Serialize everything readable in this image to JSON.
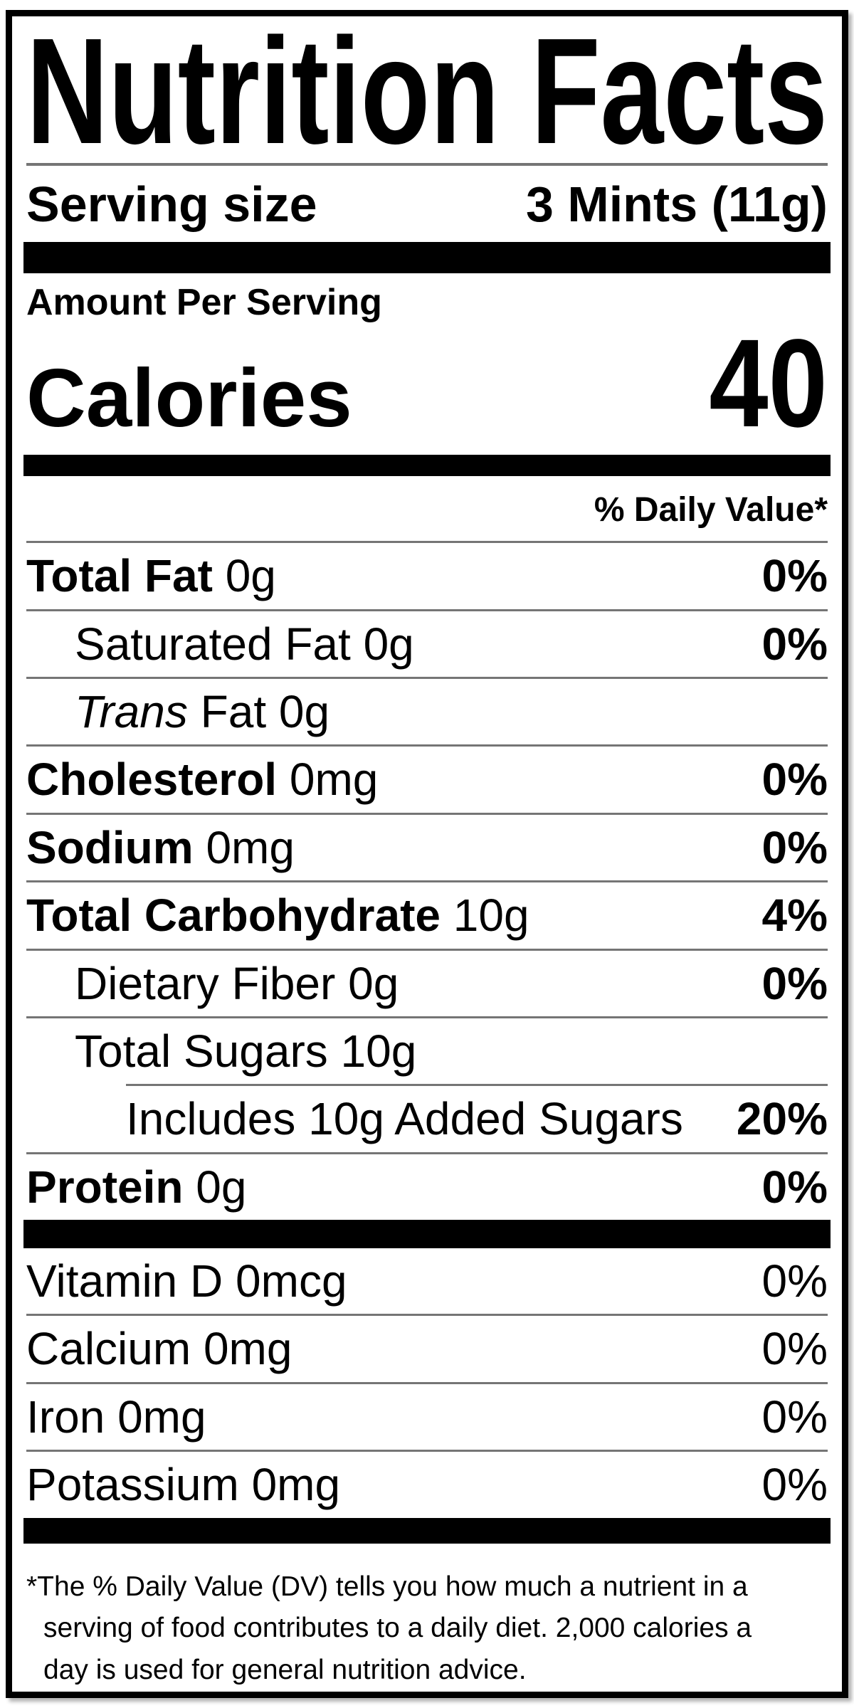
{
  "title": "Nutrition Facts",
  "serving_row": {
    "label": "Serving size",
    "value": "3 Mints (11g)"
  },
  "amount_per_serving_label": "Amount Per Serving",
  "calories_row": {
    "label": "Calories",
    "value": "40"
  },
  "daily_value_header": "% Daily Value*",
  "nutrients": [
    {
      "name": "Total Fat",
      "amount": "0g",
      "dv": "0%",
      "indent": 0,
      "bold_name": true,
      "bold_dv": true,
      "sep": "full"
    },
    {
      "name": "Saturated Fat",
      "amount": "0g",
      "dv": "0%",
      "indent": 1,
      "bold_name": false,
      "bold_dv": true,
      "sep": "full"
    },
    {
      "name": "Trans Fat",
      "amount": "0g",
      "dv": "",
      "indent": 1,
      "bold_name": false,
      "bold_dv": false,
      "italic_first": true,
      "sep": "full"
    },
    {
      "name": "Cholesterol",
      "amount": "0mg",
      "dv": "0%",
      "indent": 0,
      "bold_name": true,
      "bold_dv": true,
      "sep": "full"
    },
    {
      "name": "Sodium",
      "amount": "0mg",
      "dv": "0%",
      "indent": 0,
      "bold_name": true,
      "bold_dv": true,
      "sep": "full"
    },
    {
      "name": "Total Carbohydrate",
      "amount": "10g",
      "dv": "4%",
      "indent": 0,
      "bold_name": true,
      "bold_dv": true,
      "sep": "full"
    },
    {
      "name": "Dietary Fiber",
      "amount": "0g",
      "dv": "0%",
      "indent": 1,
      "bold_name": false,
      "bold_dv": true,
      "sep": "full"
    },
    {
      "name": "Total Sugars",
      "amount": "10g",
      "dv": "",
      "indent": 1,
      "bold_name": false,
      "bold_dv": false,
      "sep": "full"
    },
    {
      "name": "Includes 10g Added Sugars",
      "amount": "",
      "dv": "20%",
      "indent": 2,
      "bold_name": false,
      "bold_dv": true,
      "sep": "indent"
    },
    {
      "name": "Protein",
      "amount": "0g",
      "dv": "0%",
      "indent": 0,
      "bold_name": true,
      "bold_dv": true,
      "sep": "full"
    }
  ],
  "vitamins": [
    {
      "name": "Vitamin D",
      "amount": "0mcg",
      "dv": "0%",
      "sep": "none"
    },
    {
      "name": "Calcium",
      "amount": "0mg",
      "dv": "0%",
      "sep": "full"
    },
    {
      "name": "Iron",
      "amount": "0mg",
      "dv": "0%",
      "sep": "full"
    },
    {
      "name": "Potassium",
      "amount": "0mg",
      "dv": "0%",
      "sep": "full"
    }
  ],
  "footnote_lines": [
    "*The % Daily Value (DV) tells you how much a nutrient in a",
    "serving of food contributes to a daily diet. 2,000 calories a",
    "day is used for general nutrition advice."
  ],
  "colors": {
    "text": "#000000",
    "rule": "#757575",
    "bar": "#000000",
    "border": "#000000",
    "background": "#ffffff"
  }
}
